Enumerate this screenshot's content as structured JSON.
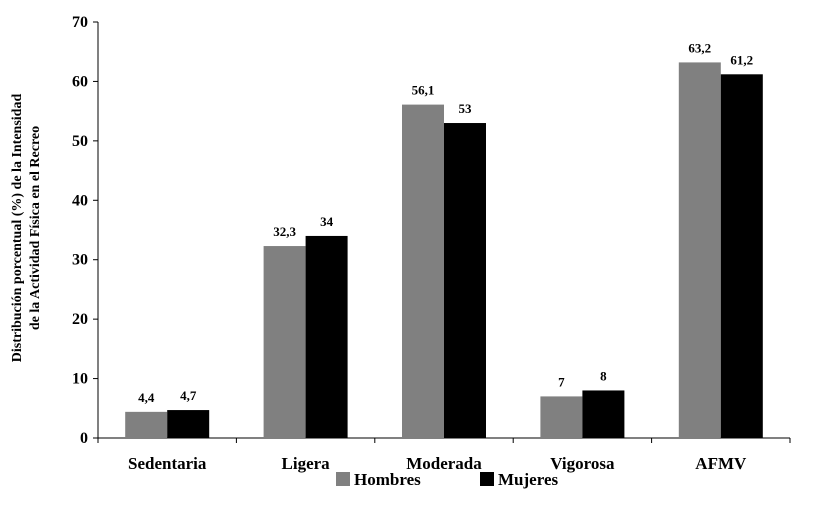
{
  "chart_data": {
    "type": "bar",
    "categories": [
      "Sedentaria",
      "Ligera",
      "Moderada",
      "Vigorosa",
      "AFMV"
    ],
    "series": [
      {
        "name": "Hombres",
        "values": [
          4.4,
          32.3,
          56.1,
          7,
          63.2
        ],
        "labels": [
          "4,4",
          "32,3",
          "56,1",
          "7",
          "63,2"
        ],
        "color": "#808080"
      },
      {
        "name": "Mujeres",
        "values": [
          4.7,
          34,
          53,
          8,
          61.2
        ],
        "labels": [
          "4,7",
          "34",
          "53",
          "8",
          "61,2"
        ],
        "color": "#000000"
      }
    ],
    "ylabel_lines": [
      "Distribución porcentual (%) de la Intensidad",
      "de la Actividad Física en el Recreo"
    ],
    "ylim": [
      0,
      70
    ],
    "yticks": [
      0,
      10,
      20,
      30,
      40,
      50,
      60,
      70
    ],
    "grid": false,
    "legend_position": "bottom"
  }
}
